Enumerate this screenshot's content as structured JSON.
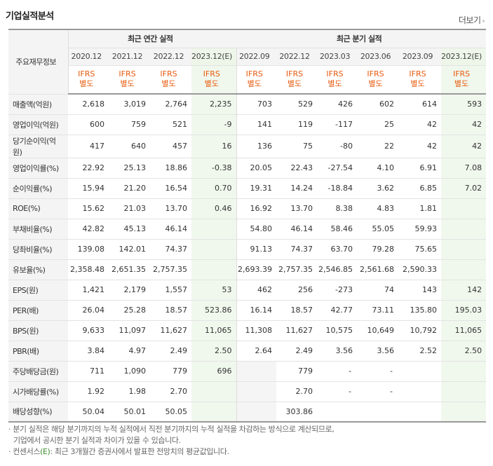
{
  "title": "기업실적분석",
  "more_label": "더보기",
  "corner_label": "주요재무정보",
  "groups": [
    "최근 연간 실적",
    "최근 분기 실적"
  ],
  "periods": [
    "2020.12",
    "2021.12",
    "2022.12",
    "2023.12(E)",
    "2022.09",
    "2022.12",
    "2023.03",
    "2023.06",
    "2023.09",
    "2023.12(E)"
  ],
  "ifrs": [
    "IFRS",
    "별도"
  ],
  "rows": [
    {
      "label": "매출액(억원)",
      "values": [
        "2,618",
        "3,019",
        "2,764",
        "2,235",
        "703",
        "529",
        "426",
        "602",
        "614",
        "593"
      ]
    },
    {
      "label": "영업이익(억원)",
      "values": [
        "600",
        "759",
        "521",
        "-9",
        "141",
        "119",
        "-117",
        "25",
        "42",
        "42"
      ]
    },
    {
      "label": "당기순이익(억원)",
      "values": [
        "417",
        "640",
        "457",
        "16",
        "136",
        "75",
        "-80",
        "22",
        "42",
        "42"
      ]
    },
    {
      "label": "영업이익률(%)",
      "values": [
        "22.92",
        "25.13",
        "18.86",
        "-0.38",
        "20.05",
        "22.43",
        "-27.54",
        "4.10",
        "6.91",
        "7.08"
      ]
    },
    {
      "label": "순이익률(%)",
      "values": [
        "15.94",
        "21.20",
        "16.54",
        "0.70",
        "19.31",
        "14.24",
        "-18.84",
        "3.62",
        "6.85",
        "7.02"
      ]
    },
    {
      "label": "ROE(%)",
      "values": [
        "15.62",
        "21.03",
        "13.70",
        "0.46",
        "16.92",
        "13.70",
        "8.38",
        "4.83",
        "1.81",
        ""
      ]
    },
    {
      "label": "부채비율(%)",
      "values": [
        "42.82",
        "45.13",
        "46.14",
        "",
        "54.80",
        "46.14",
        "58.46",
        "55.05",
        "59.93",
        ""
      ]
    },
    {
      "label": "당좌비율(%)",
      "values": [
        "139.08",
        "142.01",
        "74.37",
        "",
        "91.13",
        "74.37",
        "63.70",
        "79.28",
        "75.65",
        ""
      ]
    },
    {
      "label": "유보율(%)",
      "values": [
        "2,358.48",
        "2,651.35",
        "2,757.35",
        "",
        "2,693.39",
        "2,757.35",
        "2,546.85",
        "2,561.68",
        "2,590.33",
        ""
      ]
    },
    {
      "label": "EPS(원)",
      "values": [
        "1,421",
        "2,179",
        "1,557",
        "53",
        "462",
        "256",
        "-273",
        "74",
        "143",
        "142"
      ]
    },
    {
      "label": "PER(배)",
      "values": [
        "26.04",
        "25.28",
        "18.57",
        "523.86",
        "16.14",
        "18.57",
        "42.77",
        "73.11",
        "135.80",
        "195.03"
      ]
    },
    {
      "label": "BPS(원)",
      "values": [
        "9,633",
        "11,097",
        "11,627",
        "11,065",
        "11,308",
        "11,627",
        "10,575",
        "10,649",
        "10,792",
        "11,065"
      ]
    },
    {
      "label": "PBR(배)",
      "values": [
        "3.84",
        "4.97",
        "2.49",
        "2.50",
        "2.64",
        "2.49",
        "3.56",
        "3.56",
        "2.52",
        "2.50"
      ]
    },
    {
      "label": "주당배당금(원)",
      "values": [
        "711",
        "1,090",
        "779",
        "696",
        "",
        "779",
        "-",
        "-",
        "",
        ""
      ]
    },
    {
      "label": "시가배당률(%)",
      "values": [
        "1.92",
        "1.98",
        "2.70",
        "",
        "",
        "2.70",
        "-",
        "-",
        "",
        ""
      ]
    },
    {
      "label": "배당성향(%)",
      "values": [
        "50.04",
        "50.01",
        "50.05",
        "",
        "",
        "303.86",
        "",
        "",
        "",
        ""
      ]
    }
  ],
  "notes": {
    "line1": "· 분기 실적은 해당 분기까지의 누적 실적에서 직전 분기까지의 누적 실적을 차감하는 방식으로 계산되므로,",
    "line2": "기업에서 공시한 분기 실적과 차이가 있을 수 있습니다.",
    "line3_prefix": "· 컨센서스",
    "line3_e": "(E)",
    "line3_suffix": ": 최근 3개월간 증권사에서 발표한 전망치의 평균값입니다."
  }
}
